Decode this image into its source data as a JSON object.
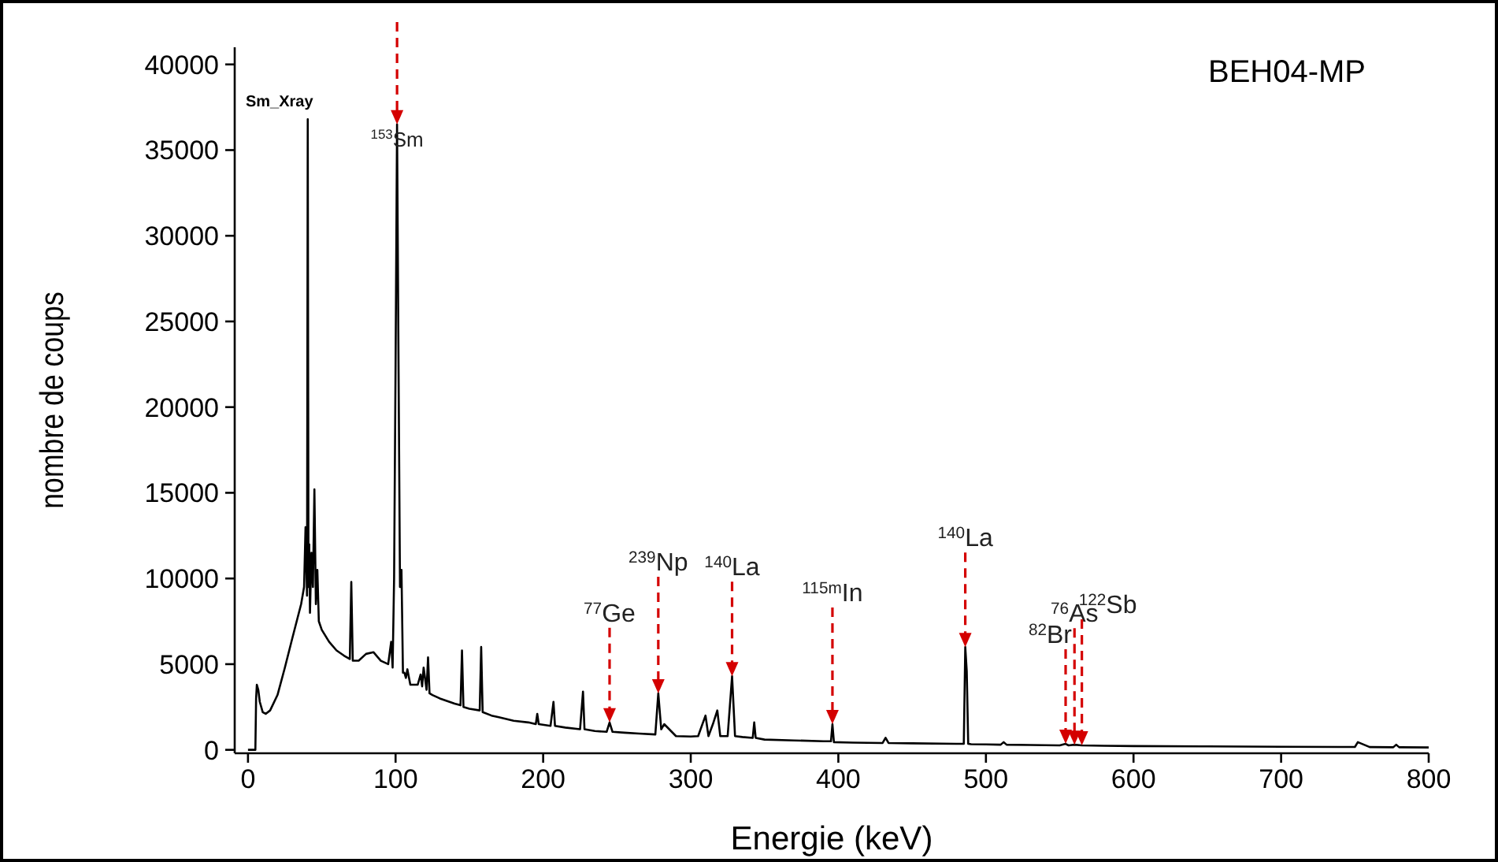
{
  "chart_data": {
    "type": "line",
    "title": "BEH04-MP",
    "xlabel": "Energie (keV)",
    "ylabel": "nombre de coups",
    "xlim": [
      -9,
      800
    ],
    "xticks": [
      0,
      100,
      200,
      300,
      400,
      500,
      600,
      700,
      800
    ],
    "ylim": [
      -200,
      41000
    ],
    "yticks": [
      0,
      5000,
      10000,
      15000,
      20000,
      25000,
      30000,
      35000,
      40000
    ],
    "grid": false,
    "marker": "none",
    "line_style": "solid",
    "series": [
      {
        "color": "#000000",
        "x": [
          0,
          5,
          5.5,
          6,
          7,
          8,
          10,
          12,
          15,
          20,
          25,
          30,
          33,
          36,
          38,
          39,
          40,
          40.5,
          41,
          41.5,
          42,
          43,
          44,
          45,
          46,
          47,
          48,
          50,
          55,
          60,
          65,
          69,
          70,
          71,
          75,
          80,
          85,
          90,
          95,
          97,
          98,
          99,
          100,
          101,
          102,
          103,
          104,
          105,
          106,
          107,
          108,
          110,
          115,
          117,
          118,
          119,
          121,
          122,
          123,
          125,
          130,
          140,
          144,
          145,
          146,
          150,
          157,
          158,
          159,
          165,
          170,
          180,
          190,
          195,
          196,
          197,
          205,
          207,
          208,
          215,
          225,
          227,
          228,
          235,
          243,
          245,
          247,
          255,
          265,
          276,
          278,
          280,
          282,
          290,
          300,
          305,
          310,
          312,
          315,
          318,
          320,
          325,
          328,
          330,
          335,
          342,
          343,
          344,
          350,
          370,
          390,
          395,
          396,
          397,
          410,
          430,
          432,
          434,
          450,
          480,
          485,
          486,
          487,
          488,
          490,
          500,
          510,
          512,
          514,
          530,
          550,
          554,
          556,
          560,
          565,
          580,
          600,
          650,
          700,
          740,
          750,
          752,
          760,
          776,
          778,
          780,
          800
        ],
        "values": [
          0,
          0,
          3000,
          3800,
          3500,
          2800,
          2200,
          2100,
          2300,
          3200,
          4800,
          6500,
          7500,
          8500,
          9500,
          13000,
          9000,
          36800,
          9500,
          12000,
          8000,
          11500,
          9500,
          15200,
          8500,
          10500,
          7500,
          7000,
          6300,
          5800,
          5500,
          5300,
          9800,
          5200,
          5200,
          5600,
          5700,
          5200,
          5000,
          6300,
          4800,
          10000,
          22500,
          36500,
          22500,
          9500,
          10500,
          4500,
          4500,
          4200,
          4700,
          3800,
          3800,
          4400,
          3700,
          4800,
          3500,
          5400,
          3300,
          3200,
          3000,
          2700,
          2600,
          5800,
          2500,
          2400,
          2300,
          6000,
          2200,
          2000,
          1900,
          1700,
          1600,
          1500,
          2100,
          1500,
          1400,
          2800,
          1400,
          1300,
          1200,
          3400,
          1200,
          1100,
          1050,
          1600,
          1050,
          1000,
          950,
          900,
          3300,
          1200,
          1500,
          800,
          780,
          800,
          2000,
          800,
          1500,
          2300,
          800,
          800,
          4300,
          800,
          750,
          700,
          1600,
          700,
          600,
          550,
          500,
          500,
          1500,
          450,
          420,
          400,
          700,
          400,
          380,
          350,
          350,
          6000,
          4600,
          350,
          330,
          320,
          300,
          450,
          300,
          280,
          260,
          350,
          260,
          300,
          260,
          240,
          220,
          200,
          180,
          170,
          170,
          450,
          160,
          150,
          300,
          150,
          140
        ]
      }
    ],
    "annotations": [
      {
        "text": "Sm_Xray",
        "x": 40.5,
        "y": 36800
      },
      {
        "text": "$^{153}$Sm",
        "x": 101,
        "y": 36500
      },
      {
        "text": "$^{77}$Ge",
        "x": 245,
        "y": 1600
      },
      {
        "text": "$^{239}$Np",
        "x": 278,
        "y": 3300
      },
      {
        "text": "$^{140}$La",
        "x": 328,
        "y": 4300
      },
      {
        "text": "$^{115m}$In",
        "x": 396,
        "y": 1500
      },
      {
        "text": "$^{140}$La",
        "x": 486,
        "y": 6000
      },
      {
        "text": "$^{82}$Br",
        "x": 554,
        "y": 350
      },
      {
        "text": "$^{76}$As",
        "x": 560,
        "y": 300
      },
      {
        "text": "$^{122}$Sb",
        "x": 565,
        "y": 260
      }
    ]
  }
}
